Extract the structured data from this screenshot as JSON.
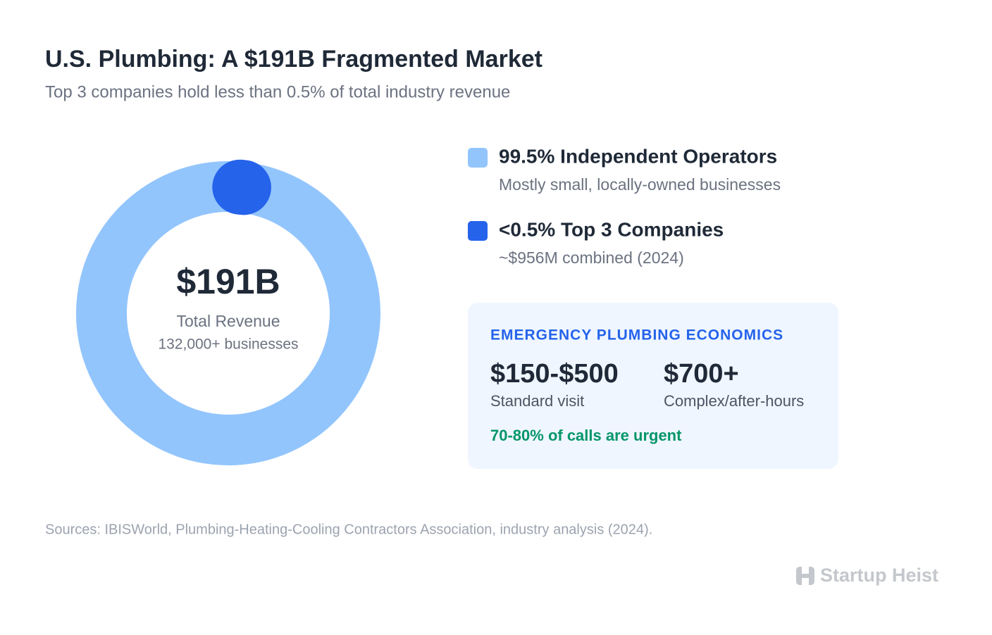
{
  "chart_data": {
    "type": "donut",
    "title": "U.S. Plumbing: A $191B Fragmented Market",
    "subtitle": "Top 3 companies hold less than 0.5% of total industry revenue",
    "center_value": "$191B",
    "center_label": "Total Revenue",
    "center_sublabel": "132,000+ businesses",
    "series": [
      {
        "name": "99.5% Independent Operators",
        "description": "Mostly small, locally-owned businesses",
        "color": "#93c5fd",
        "value": 99.5
      },
      {
        "name": "<0.5% Top 3 Companies",
        "description": "~$956M combined (2024)",
        "color": "#2563eb",
        "value": 0.5
      }
    ],
    "panel": {
      "title": "EMERGENCY PLUMBING ECONOMICS",
      "items": [
        {
          "value": "$150-$500",
          "label": "Standard visit"
        },
        {
          "value": "$700+",
          "label": "Complex/after-hours"
        }
      ],
      "note": "70-80% of calls are urgent"
    },
    "sources": "Sources: IBISWorld, Plumbing-Heating-Cooling Contractors Association, industry analysis (2024).",
    "brand": "Startup Heist"
  }
}
